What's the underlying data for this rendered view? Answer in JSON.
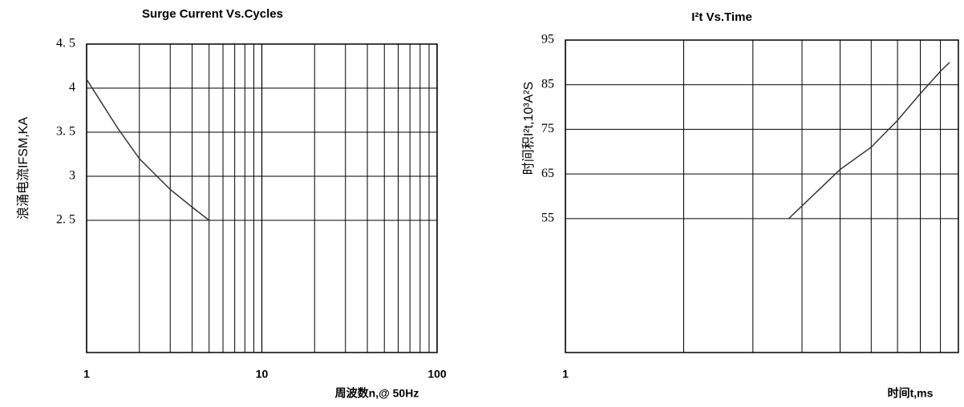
{
  "chart_data": [
    {
      "type": "line",
      "title": "Surge Current Vs.Cycles",
      "ylabel": "浪涌电流IFSM,KA",
      "xlabel": "周波数n,@ 50Hz",
      "x": [
        1,
        1.5,
        2,
        3,
        4,
        5
      ],
      "log_x": true,
      "series": [
        {
          "name": "IFSM",
          "color": "#333333",
          "values": [
            4.1,
            3.55,
            3.2,
            2.85,
            2.65,
            2.5
          ]
        }
      ],
      "xlim": [
        1,
        100
      ],
      "xticks": [
        1,
        10,
        100
      ],
      "ylim": [
        1,
        4.5
      ],
      "yticks": [
        {
          "value": 4.5,
          "label": "4. 5"
        },
        4,
        {
          "value": 3.5,
          "label": "3. 5"
        },
        3,
        {
          "value": 2.5,
          "label": "2. 5"
        }
      ],
      "grid": true
    },
    {
      "type": "line",
      "title": "I²t Vs.Time",
      "ylabel": "时间积I²t,10³A²S",
      "xlabel": "时间t,ms",
      "x": [
        3.7,
        5,
        6,
        7,
        8,
        9,
        9.5
      ],
      "log_x": true,
      "series": [
        {
          "name": "I²t",
          "color": "#333333",
          "values": [
            55,
            66,
            71,
            77,
            83,
            88,
            90
          ]
        }
      ],
      "xlim": [
        1,
        10
      ],
      "xticks": [
        1
      ],
      "ylim": [
        25,
        95
      ],
      "yticks": [
        95,
        85,
        75,
        65,
        55
      ],
      "grid": true
    }
  ]
}
